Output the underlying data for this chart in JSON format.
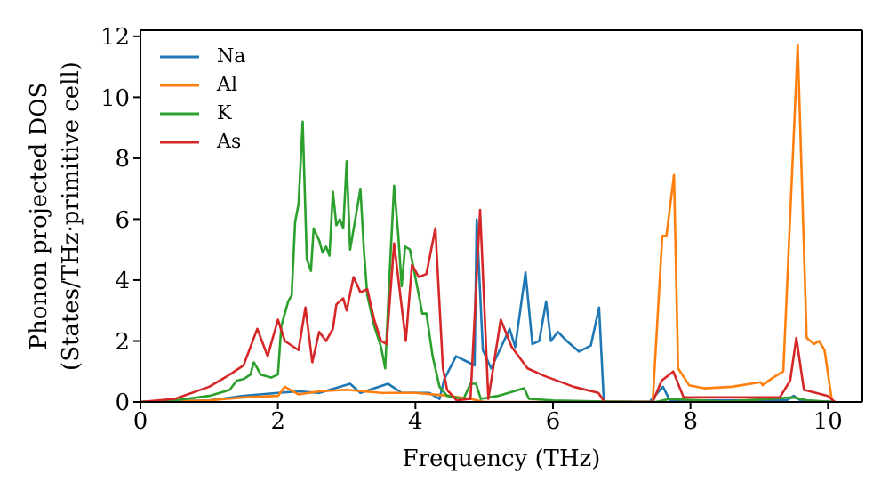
{
  "chart_data": {
    "type": "line",
    "xlabel": "Frequency (THz)",
    "ylabel": "Phonon projected DOS\n(States/THz·primitive cell)",
    "xlim": [
      0,
      10.5
    ],
    "ylim": [
      0,
      12.2
    ],
    "xticks": [
      0,
      2,
      4,
      6,
      8,
      10
    ],
    "yticks": [
      0,
      2,
      4,
      6,
      8,
      10,
      12
    ],
    "legend": "top left",
    "grid": false,
    "marker": "none",
    "line_style": "solid",
    "series": [
      {
        "name": "Na",
        "color": "#1f77b4",
        "x": [
          0,
          1,
          1.5,
          2,
          2.3,
          2.6,
          3.05,
          3.2,
          3.6,
          3.8,
          4.2,
          4.35,
          4.42,
          4.59,
          4.77,
          4.86,
          4.89,
          4.98,
          5.1,
          5.37,
          5.45,
          5.6,
          5.7,
          5.8,
          5.9,
          5.97,
          6.07,
          6.2,
          6.38,
          6.55,
          6.67,
          6.74,
          7.4,
          7.6,
          7.7,
          9.4,
          9.5,
          9.6,
          10.1
        ],
        "values": [
          0,
          0.05,
          0.2,
          0.3,
          0.35,
          0.3,
          0.6,
          0.3,
          0.6,
          0.3,
          0.3,
          0.1,
          0.75,
          1.5,
          1.3,
          1.2,
          6.0,
          1.7,
          1.1,
          2.4,
          1.8,
          4.25,
          1.9,
          2.0,
          3.3,
          2.0,
          2.3,
          2.0,
          1.65,
          1.85,
          3.1,
          0,
          0,
          0.5,
          0.05,
          0.05,
          0.2,
          0.05,
          0
        ]
      },
      {
        "name": "Al",
        "color": "#ff7f0e",
        "x": [
          0,
          1,
          1.5,
          2,
          2.1,
          2.3,
          2.6,
          3.0,
          3.5,
          4.0,
          4.5,
          4.8,
          5.0,
          7.45,
          7.59,
          7.65,
          7.76,
          7.82,
          7.98,
          8.2,
          8.6,
          9.02,
          9.05,
          9.2,
          9.35,
          9.56,
          9.69,
          9.8,
          9.87,
          9.95,
          10.06
        ],
        "values": [
          0,
          0.05,
          0.15,
          0.2,
          0.5,
          0.25,
          0.35,
          0.4,
          0.3,
          0.3,
          0.2,
          0.1,
          0,
          0,
          5.45,
          5.45,
          7.45,
          1.1,
          0.55,
          0.45,
          0.5,
          0.65,
          0.55,
          0.8,
          1.0,
          11.7,
          2.1,
          1.9,
          2.0,
          1.7,
          0
        ]
      },
      {
        "name": "K",
        "color": "#2ca02c",
        "x": [
          0,
          0.5,
          1.0,
          1.3,
          1.4,
          1.5,
          1.6,
          1.65,
          1.75,
          1.9,
          2.0,
          2.05,
          2.15,
          2.2,
          2.25,
          2.3,
          2.36,
          2.42,
          2.48,
          2.52,
          2.6,
          2.65,
          2.7,
          2.75,
          2.8,
          2.85,
          2.9,
          2.95,
          3.0,
          3.05,
          3.2,
          3.25,
          3.3,
          3.4,
          3.5,
          3.56,
          3.62,
          3.69,
          3.75,
          3.8,
          3.85,
          3.92,
          4.05,
          4.1,
          4.16,
          4.25,
          4.35,
          4.46,
          4.7,
          4.8,
          4.88,
          4.95,
          5.2,
          5.58,
          5.65,
          6.0,
          6.6,
          7.5,
          7.7,
          8.5,
          9.5,
          9.7,
          10.1
        ],
        "values": [
          0,
          0.05,
          0.2,
          0.4,
          0.7,
          0.75,
          0.9,
          1.3,
          0.9,
          0.8,
          0.9,
          2.5,
          3.3,
          3.5,
          5.9,
          6.5,
          9.2,
          4.7,
          4.3,
          5.7,
          5.3,
          4.9,
          5.1,
          4.8,
          6.9,
          5.8,
          6.0,
          5.7,
          7.9,
          5.0,
          7.0,
          5.0,
          3.5,
          2.5,
          1.8,
          1.1,
          4.0,
          7.1,
          5.5,
          3.8,
          5.1,
          5.0,
          3.5,
          2.9,
          2.9,
          1.5,
          0.5,
          0.2,
          0.1,
          0.6,
          0.6,
          0.1,
          0.2,
          0.45,
          0.1,
          0.05,
          0.02,
          0,
          0.1,
          0.01,
          0.15,
          0.05,
          0
        ]
      },
      {
        "name": "As",
        "color": "#d62728",
        "x": [
          0,
          0.5,
          1.0,
          1.3,
          1.5,
          1.7,
          1.85,
          2.0,
          2.1,
          2.3,
          2.4,
          2.5,
          2.6,
          2.7,
          2.8,
          2.85,
          2.95,
          3.0,
          3.1,
          3.2,
          3.3,
          3.4,
          3.5,
          3.58,
          3.69,
          3.86,
          3.95,
          4.05,
          4.16,
          4.29,
          4.4,
          4.46,
          4.6,
          4.8,
          4.94,
          5.06,
          5.24,
          5.4,
          5.63,
          5.88,
          6.3,
          6.66,
          6.75,
          7.45,
          7.58,
          7.75,
          7.9,
          9.3,
          9.45,
          9.54,
          9.65,
          10.0,
          10.1
        ],
        "values": [
          0,
          0.1,
          0.5,
          0.9,
          1.2,
          2.4,
          1.5,
          2.7,
          2.0,
          1.7,
          3.1,
          1.3,
          2.3,
          2.0,
          2.4,
          3.2,
          3.4,
          3.0,
          4.1,
          3.6,
          3.7,
          2.7,
          2.0,
          1.9,
          5.2,
          2.0,
          4.5,
          4.1,
          4.2,
          5.7,
          1.1,
          0.4,
          0.05,
          0.1,
          6.3,
          0.1,
          2.7,
          1.8,
          1.1,
          0.85,
          0.5,
          0.3,
          0,
          0,
          0.7,
          1.0,
          0.15,
          0.15,
          0.7,
          2.1,
          0.4,
          0.2,
          0
        ]
      }
    ]
  }
}
